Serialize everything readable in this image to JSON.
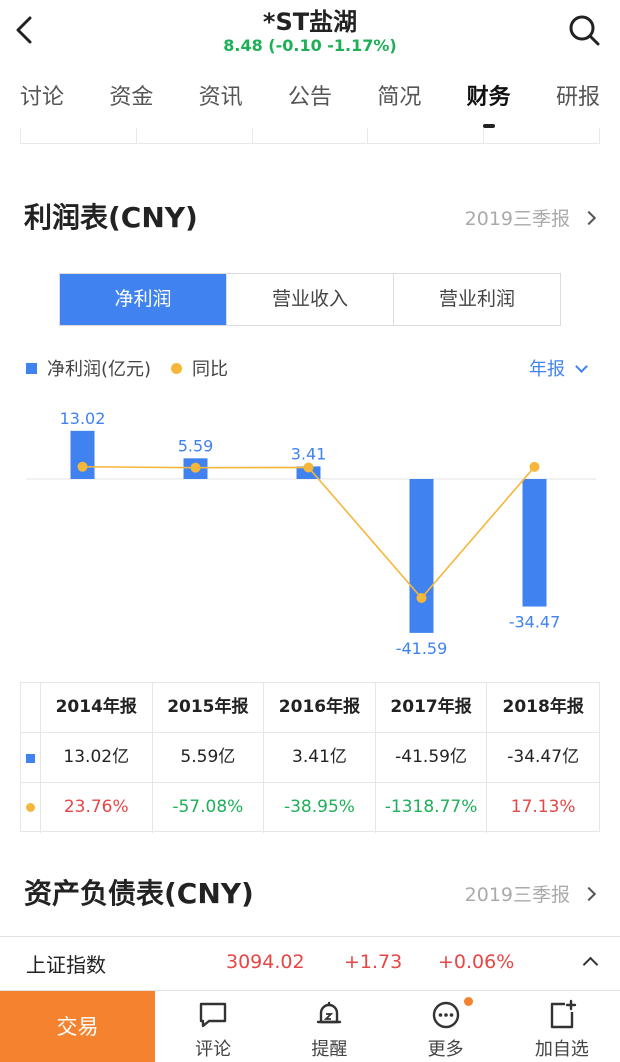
{
  "header": {
    "title": "*ST盐湖",
    "price_line": "8.48 (-0.10 -1.17%)"
  },
  "tabs": [
    {
      "label": "讨论",
      "active": false
    },
    {
      "label": "资金",
      "active": false
    },
    {
      "label": "资讯",
      "active": false
    },
    {
      "label": "公告",
      "active": false
    },
    {
      "label": "简况",
      "active": false
    },
    {
      "label": "财务",
      "active": true
    },
    {
      "label": "研报",
      "active": false
    }
  ],
  "income": {
    "title": "利润表(CNY)",
    "period_link": "2019三季报",
    "segments": [
      "净利润",
      "营业收入",
      "营业利润"
    ],
    "active_segment": 0,
    "legend_bar": "净利润(亿元)",
    "legend_line": "同比",
    "period_selector": "年报"
  },
  "chart_data": {
    "type": "bar",
    "categories": [
      "2014年报",
      "2015年报",
      "2016年报",
      "2017年报",
      "2018年报"
    ],
    "series": [
      {
        "name": "净利润(亿元)",
        "type": "bar",
        "values": [
          13.02,
          5.59,
          3.41,
          -41.59,
          -34.47
        ],
        "labels": [
          "13.02",
          "5.59",
          "3.41",
          "-41.59",
          "-34.47"
        ],
        "color": "#3f82f0"
      },
      {
        "name": "同比",
        "type": "line",
        "values": [
          23.76,
          -57.08,
          -38.95,
          -1318.77,
          17.13
        ],
        "color": "#f5b73b"
      }
    ]
  },
  "table": {
    "headers": [
      "2014年报",
      "2015年报",
      "2016年报",
      "2017年报",
      "2018年报"
    ],
    "profit_row": [
      "13.02亿",
      "5.59亿",
      "3.41亿",
      "-41.59亿",
      "-34.47亿"
    ],
    "yoy_row": [
      "23.76%",
      "-57.08%",
      "-38.95%",
      "-1318.77%",
      "17.13%"
    ]
  },
  "balance": {
    "title": "资产负债表(CNY)",
    "period_link": "2019三季报"
  },
  "index_bar": {
    "name": "上证指数",
    "value": "3094.02",
    "change": "+1.73",
    "percent": "+0.06%"
  },
  "bottom_nav": {
    "trade": "交易",
    "items": [
      {
        "label": "评论",
        "icon": "comment-icon"
      },
      {
        "label": "提醒",
        "icon": "alarm-icon"
      },
      {
        "label": "更多",
        "icon": "more-icon"
      },
      {
        "label": "加自选",
        "icon": "add-watchlist-icon"
      }
    ]
  },
  "colors": {
    "accent": "#3f82f0",
    "line": "#f5b73b",
    "up": "#e84545",
    "down": "#1db058",
    "trade": "#f5822e"
  }
}
